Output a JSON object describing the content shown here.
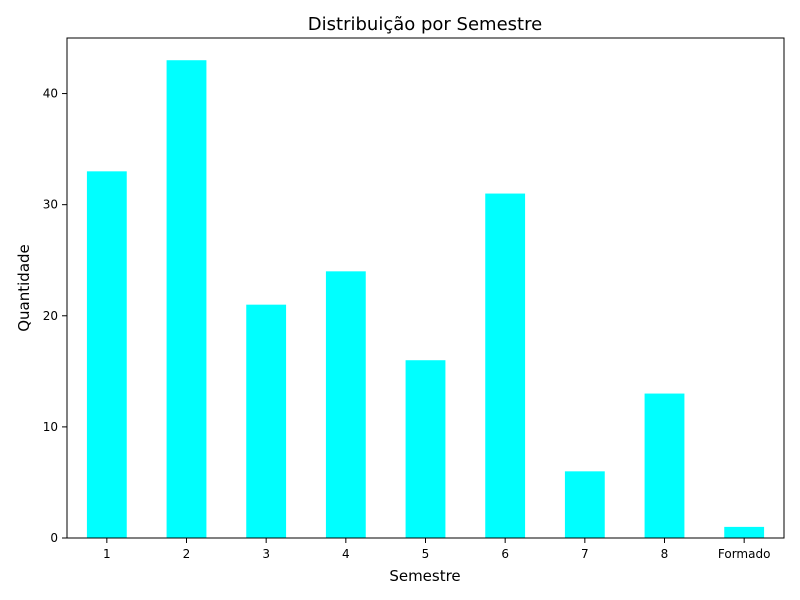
{
  "chart_data": {
    "type": "bar",
    "title": "Distribuição por Semestre",
    "xlabel": "Semestre",
    "ylabel": "Quantidade",
    "categories": [
      "1",
      "2",
      "3",
      "4",
      "5",
      "6",
      "7",
      "8",
      "Formado"
    ],
    "values": [
      33,
      43,
      21,
      24,
      16,
      31,
      6,
      13,
      1
    ],
    "ylim": [
      0,
      45
    ],
    "yticks": [
      "0",
      "10",
      "20",
      "30",
      "40"
    ],
    "bar_color": "#00ffff",
    "grid": false,
    "legend": "none"
  }
}
